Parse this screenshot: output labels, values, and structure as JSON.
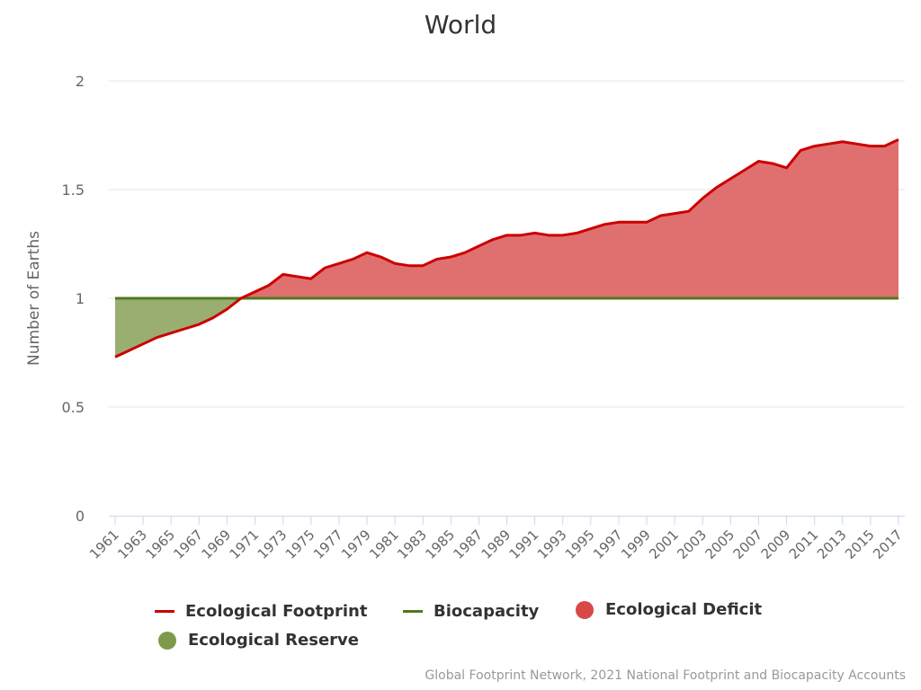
{
  "title": "World",
  "yaxis_label": "Number of Earths",
  "credit": "Global Footprint Network, 2021 National Footprint and Biocapacity Accounts",
  "legend": [
    {
      "label": "Ecological Footprint",
      "symbol": "line",
      "color": "#cc0000"
    },
    {
      "label": "Biocapacity",
      "symbol": "line",
      "color": "#4f7a1c"
    },
    {
      "label": "Ecological Deficit",
      "symbol": "dot",
      "color": "#d94848"
    },
    {
      "label": "Ecological Reserve",
      "symbol": "dot",
      "color": "#7d9a4c"
    }
  ],
  "colors": {
    "footprint_line": "#cc0000",
    "biocapacity_line": "#4f7a1c",
    "deficit_fill": "#e07070",
    "reserve_fill": "#9aae72",
    "grid": "#e6e6e6",
    "xaxis": "#ccd6eb",
    "tick_text": "#666666"
  },
  "chart_data": {
    "type": "area",
    "title": "World",
    "xlabel": "",
    "ylabel": "Number of Earths",
    "ylim": [
      0,
      2
    ],
    "yticks": [
      "0",
      "0.5",
      "1",
      "1.5",
      "2"
    ],
    "xticks": [
      "1961",
      "1963",
      "1965",
      "1967",
      "1969",
      "1971",
      "1973",
      "1975",
      "1977",
      "1979",
      "1981",
      "1983",
      "1985",
      "1987",
      "1989",
      "1991",
      "1993",
      "1995",
      "1997",
      "1999",
      "2001",
      "2003",
      "2005",
      "2007",
      "2009",
      "2011",
      "2013",
      "2015",
      "2017"
    ],
    "x": [
      1961,
      1962,
      1963,
      1964,
      1965,
      1966,
      1967,
      1968,
      1969,
      1970,
      1971,
      1972,
      1973,
      1974,
      1975,
      1976,
      1977,
      1978,
      1979,
      1980,
      1981,
      1982,
      1983,
      1984,
      1985,
      1986,
      1987,
      1988,
      1989,
      1990,
      1991,
      1992,
      1993,
      1994,
      1995,
      1996,
      1997,
      1998,
      1999,
      2000,
      2001,
      2002,
      2003,
      2004,
      2005,
      2006,
      2007,
      2008,
      2009,
      2010,
      2011,
      2012,
      2013,
      2014,
      2015,
      2016,
      2017
    ],
    "series": [
      {
        "name": "Ecological Footprint",
        "type": "line",
        "values": [
          0.73,
          0.76,
          0.79,
          0.82,
          0.84,
          0.86,
          0.88,
          0.91,
          0.95,
          1.0,
          1.03,
          1.06,
          1.11,
          1.1,
          1.09,
          1.14,
          1.16,
          1.18,
          1.21,
          1.19,
          1.16,
          1.15,
          1.15,
          1.18,
          1.19,
          1.21,
          1.24,
          1.27,
          1.29,
          1.29,
          1.3,
          1.29,
          1.29,
          1.3,
          1.32,
          1.34,
          1.35,
          1.35,
          1.35,
          1.38,
          1.39,
          1.4,
          1.46,
          1.51,
          1.55,
          1.59,
          1.63,
          1.62,
          1.6,
          1.68,
          1.7,
          1.71,
          1.72,
          1.71,
          1.7,
          1.7,
          1.73
        ]
      },
      {
        "name": "Biocapacity",
        "type": "line",
        "values": [
          1,
          1,
          1,
          1,
          1,
          1,
          1,
          1,
          1,
          1,
          1,
          1,
          1,
          1,
          1,
          1,
          1,
          1,
          1,
          1,
          1,
          1,
          1,
          1,
          1,
          1,
          1,
          1,
          1,
          1,
          1,
          1,
          1,
          1,
          1,
          1,
          1,
          1,
          1,
          1,
          1,
          1,
          1,
          1,
          1,
          1,
          1,
          1,
          1,
          1,
          1,
          1,
          1,
          1,
          1,
          1,
          1
        ]
      },
      {
        "name": "Ecological Deficit",
        "type": "area",
        "description": "Footprint above Biocapacity"
      },
      {
        "name": "Ecological Reserve",
        "type": "area",
        "description": "Biocapacity above Footprint"
      }
    ],
    "grid": true,
    "legend_position": "bottom"
  }
}
